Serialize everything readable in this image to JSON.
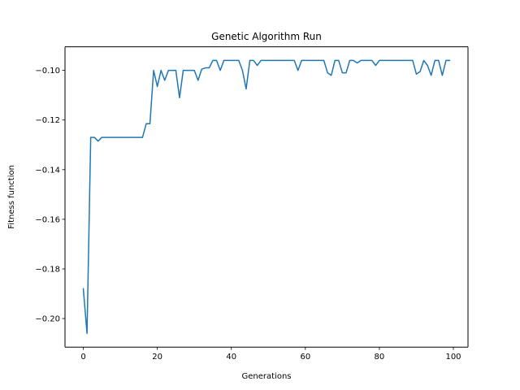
{
  "chart_data": {
    "type": "line",
    "title": "Genetic Algorithm Run",
    "xlabel": "Generations",
    "ylabel": "Fitness function",
    "xlim": [
      -4.95,
      103.95
    ],
    "ylim": [
      -0.2115,
      -0.0905
    ],
    "xticks": [
      0,
      20,
      40,
      60,
      80,
      100
    ],
    "xtick_labels": [
      "0",
      "20",
      "40",
      "60",
      "80",
      "100"
    ],
    "yticks": [
      -0.2,
      -0.18,
      -0.16,
      -0.14,
      -0.12,
      -0.1
    ],
    "ytick_labels": [
      "−0.20",
      "−0.18",
      "−0.16",
      "−0.14",
      "−0.12",
      "−0.10"
    ],
    "grid": false,
    "series": [
      {
        "color": "#1f77b4",
        "x": [
          0,
          1,
          2,
          3,
          4,
          5,
          6,
          7,
          8,
          9,
          10,
          11,
          12,
          13,
          14,
          15,
          16,
          17,
          18,
          19,
          20,
          21,
          22,
          23,
          24,
          25,
          26,
          27,
          28,
          29,
          30,
          31,
          32,
          33,
          34,
          35,
          36,
          37,
          38,
          39,
          40,
          41,
          42,
          43,
          44,
          45,
          46,
          47,
          48,
          49,
          50,
          51,
          52,
          53,
          54,
          55,
          56,
          57,
          58,
          59,
          60,
          61,
          62,
          63,
          64,
          65,
          66,
          67,
          68,
          69,
          70,
          71,
          72,
          73,
          74,
          75,
          76,
          77,
          78,
          79,
          80,
          81,
          82,
          83,
          84,
          85,
          86,
          87,
          88,
          89,
          90,
          91,
          92,
          93,
          94,
          95,
          96,
          97,
          98,
          99
        ],
        "y": [
          -0.188,
          -0.206,
          -0.127,
          -0.127,
          -0.1285,
          -0.127,
          -0.127,
          -0.127,
          -0.127,
          -0.127,
          -0.127,
          -0.127,
          -0.127,
          -0.127,
          -0.127,
          -0.127,
          -0.127,
          -0.1215,
          -0.1215,
          -0.1,
          -0.1065,
          -0.1,
          -0.104,
          -0.1,
          -0.1,
          -0.1,
          -0.111,
          -0.1,
          -0.1,
          -0.1,
          -0.1,
          -0.104,
          -0.0995,
          -0.099,
          -0.099,
          -0.096,
          -0.096,
          -0.1,
          -0.096,
          -0.096,
          -0.096,
          -0.096,
          -0.096,
          -0.1,
          -0.1075,
          -0.096,
          -0.096,
          -0.098,
          -0.096,
          -0.096,
          -0.096,
          -0.096,
          -0.096,
          -0.096,
          -0.096,
          -0.096,
          -0.096,
          -0.096,
          -0.1,
          -0.096,
          -0.096,
          -0.096,
          -0.096,
          -0.096,
          -0.096,
          -0.096,
          -0.101,
          -0.102,
          -0.096,
          -0.096,
          -0.101,
          -0.101,
          -0.096,
          -0.096,
          -0.097,
          -0.096,
          -0.096,
          -0.096,
          -0.096,
          -0.098,
          -0.096,
          -0.096,
          -0.096,
          -0.096,
          -0.096,
          -0.096,
          -0.096,
          -0.096,
          -0.096,
          -0.096,
          -0.1015,
          -0.1005,
          -0.096,
          -0.098,
          -0.102,
          -0.096,
          -0.096,
          -0.102,
          -0.096,
          -0.096
        ]
      }
    ]
  }
}
